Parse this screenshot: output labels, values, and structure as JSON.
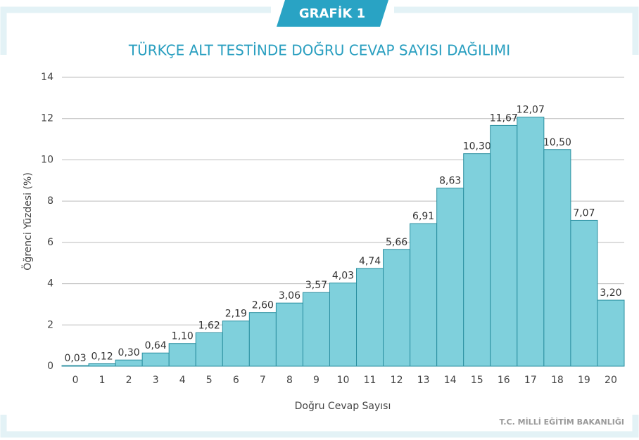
{
  "badge": "GRAFİK 1",
  "footer": "T.C. MİLLİ EĞİTİM BAKANLIĞI",
  "chart_data": {
    "type": "bar",
    "title": "TÜRKÇE ALT TESTİNDE DOĞRU CEVAP SAYISI DAĞILIMI",
    "x_label": "Doğru Cevap Sayısı",
    "y_label": "Öğrenci Yüzdesi (%)",
    "categories": [
      "0",
      "1",
      "2",
      "3",
      "4",
      "5",
      "6",
      "7",
      "8",
      "9",
      "10",
      "11",
      "12",
      "13",
      "14",
      "15",
      "16",
      "17",
      "18",
      "19",
      "20"
    ],
    "values": [
      0.03,
      0.12,
      0.3,
      0.64,
      1.1,
      1.62,
      2.19,
      2.6,
      3.06,
      3.57,
      4.03,
      4.74,
      5.66,
      6.91,
      8.63,
      10.3,
      11.67,
      12.07,
      10.5,
      7.07,
      3.2
    ],
    "value_labels": [
      "0,03",
      "0,12",
      "0,30",
      "0,64",
      "1,10",
      "1,62",
      "2,19",
      "2,60",
      "3,06",
      "3,57",
      "4,03",
      "4,74",
      "5,66",
      "6,91",
      "8,63",
      "10,30",
      "11,67",
      "12,07",
      "10,50",
      "7,07",
      "3,20"
    ],
    "color": "#7fd0dc",
    "ylim": [
      0,
      14
    ],
    "yticks": [
      0,
      2,
      4,
      6,
      8,
      10,
      12,
      14
    ],
    "grid": true
  }
}
